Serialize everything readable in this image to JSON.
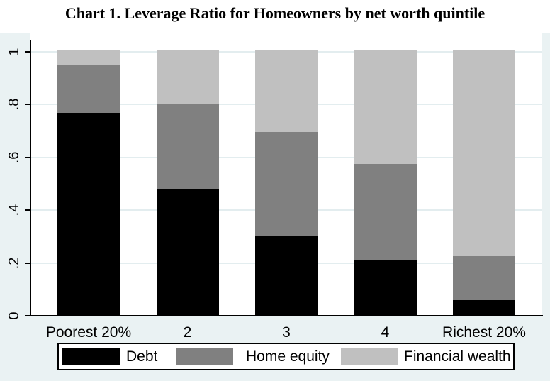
{
  "title": "Chart 1. Leverage Ratio for Homeowners by net worth quintile",
  "chart_data": {
    "type": "bar",
    "stacked": true,
    "title": "Chart 1. Leverage Ratio for Homeowners by net worth quintile",
    "categories": [
      "Poorest 20%",
      "2",
      "3",
      "4",
      "Richest 20%"
    ],
    "series": [
      {
        "name": "Debt",
        "color": "#000000",
        "values": [
          0.77,
          0.48,
          0.3,
          0.21,
          0.06
        ]
      },
      {
        "name": "Home equity",
        "color": "#808080",
        "values": [
          0.18,
          0.325,
          0.395,
          0.365,
          0.165
        ]
      },
      {
        "name": "Financial wealth",
        "color": "#c0c0c0",
        "values": [
          0.055,
          0.2,
          0.31,
          0.43,
          0.78
        ]
      }
    ],
    "stack_totals": [
      1.005,
      1.005,
      1.005,
      1.005,
      1.005
    ],
    "xlabel": "",
    "ylabel": "",
    "y_ticks": [
      "0",
      ".2",
      ".4",
      ".6",
      ".8",
      "1"
    ],
    "y_tick_values": [
      0,
      0.2,
      0.4,
      0.6,
      0.8,
      1
    ],
    "ylim": [
      0,
      1.01
    ],
    "grid": true,
    "legend_position": "bottom",
    "legend_entries": [
      "Debt",
      "Home equity",
      "Financial wealth"
    ],
    "colors": {
      "background": "#eaf2f3",
      "plot_background": "#ffffff",
      "gridline": "#e3edef",
      "axis": "#000000",
      "text": "#000000",
      "legend_background": "#ffffff",
      "legend_border": "#000000"
    }
  }
}
